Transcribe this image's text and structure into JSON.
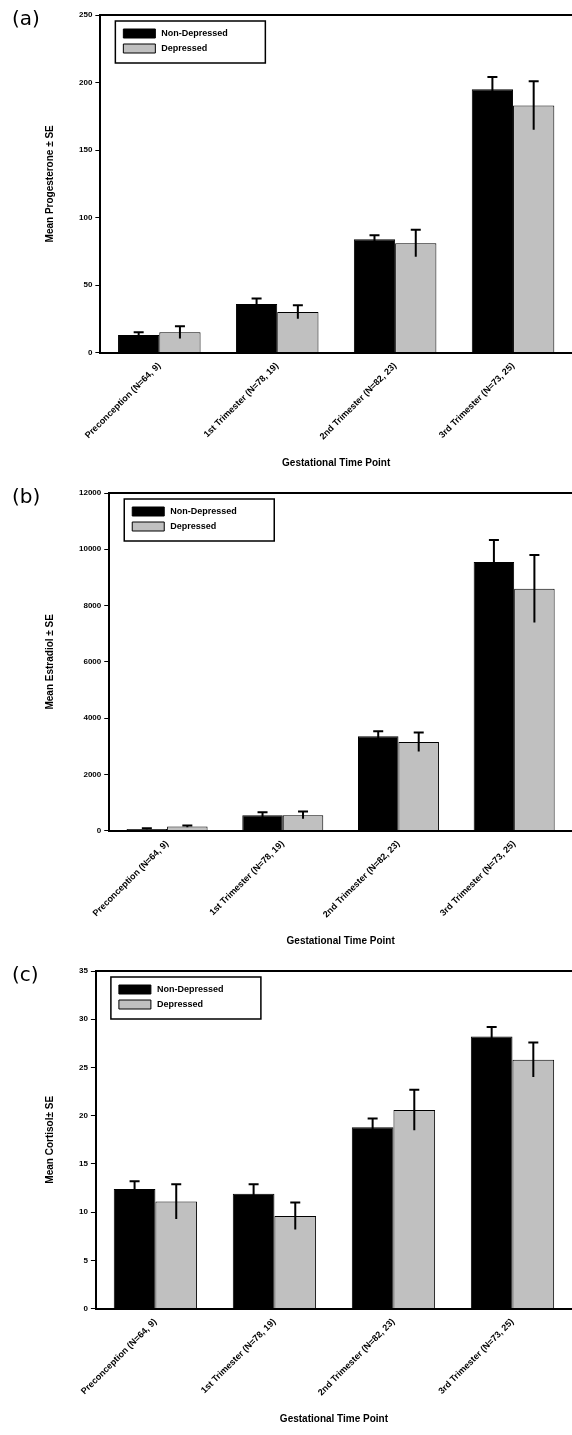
{
  "chart_data": [
    {
      "type": "bar",
      "title": "(a)",
      "xlabel": "Gestational Time Point",
      "ylabel": "Mean Progesterone ± SE",
      "categories": [
        "Preconception (N=64, 9)",
        "1st Trimester (N=78, 19)",
        "2nd Trimester (N=82, 23)",
        "3rd Trimester (N=73, 25)"
      ],
      "series": [
        {
          "name": "Non-Depressed",
          "color": "#000000",
          "values": [
            13,
            36,
            84,
            195
          ],
          "errors": [
            2,
            4,
            3,
            9
          ]
        },
        {
          "name": "Depressed",
          "color": "#c0c0c0",
          "values": [
            15,
            30,
            81,
            183
          ],
          "errors": [
            4.5,
            5,
            10,
            18
          ]
        }
      ],
      "ylim": [
        0,
        250
      ],
      "yticks": [
        0,
        50,
        100,
        150,
        200,
        250
      ],
      "grid": false,
      "legend": "top left"
    },
    {
      "type": "bar",
      "title": "(b)",
      "xlabel": "Gestational Time Point",
      "ylabel": "Mean Estradiol ± SE",
      "categories": [
        "Preconception (N=64, 9)",
        "1st Trimester (N=78, 19)",
        "2nd Trimester (N=82, 23)",
        "3rd Trimester (N=73, 25)"
      ],
      "series": [
        {
          "name": "Non-Depressed",
          "color": "#000000",
          "values": [
            60,
            550,
            3350,
            9550
          ],
          "errors": [
            20,
            100,
            180,
            780
          ]
        },
        {
          "name": "Depressed",
          "color": "#c0c0c0",
          "values": [
            150,
            550,
            3150,
            8600
          ],
          "errors": [
            30,
            130,
            340,
            1200
          ]
        }
      ],
      "ylim": [
        0,
        12000
      ],
      "yticks": [
        0,
        2000,
        4000,
        6000,
        8000,
        10000,
        12000
      ],
      "grid": false,
      "legend": "top left"
    },
    {
      "type": "bar",
      "title": "(c)",
      "xlabel": "Gestational Time Point",
      "ylabel": "Mean Cortisol± SE",
      "categories": [
        "Preconception (N=64, 9)",
        "1st Trimester (N=78, 19)",
        "2nd Trimester (N=82, 23)",
        "3rd Trimester (N=73, 25)"
      ],
      "series": [
        {
          "name": "Non-Depressed",
          "color": "#000000",
          "values": [
            12.4,
            11.9,
            18.8,
            28.2
          ],
          "errors": [
            0.8,
            1.0,
            0.9,
            1.0
          ]
        },
        {
          "name": "Depressed",
          "color": "#c0c0c0",
          "values": [
            11.1,
            9.6,
            20.6,
            25.8
          ],
          "errors": [
            1.8,
            1.4,
            2.1,
            1.8
          ]
        }
      ],
      "ylim": [
        0,
        35
      ],
      "yticks": [
        0,
        5,
        10,
        15,
        20,
        25,
        30,
        35
      ],
      "grid": false,
      "legend": "top left"
    }
  ]
}
